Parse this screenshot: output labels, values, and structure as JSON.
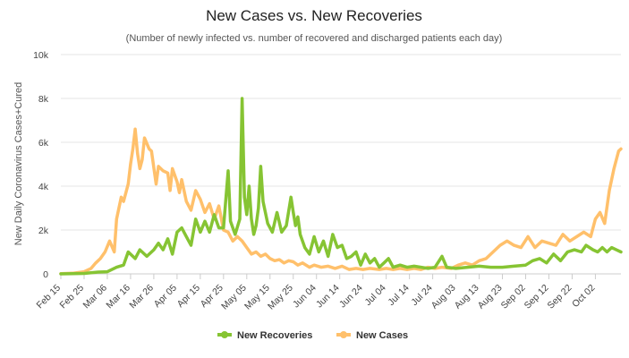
{
  "chart_data": {
    "type": "line",
    "title": "New Cases vs. New Recoveries",
    "subtitle": "(Number of newly infected vs. number of recovered and discharged patients each day)",
    "ylabel": "New Daily Coronavirus Cases+Cured",
    "xlabel": "",
    "ylim": [
      0,
      10000
    ],
    "yticks": [
      0,
      2000,
      4000,
      6000,
      8000,
      10000
    ],
    "ytick_labels": [
      "0",
      "2k",
      "4k",
      "6k",
      "8k",
      "10k"
    ],
    "xticks": [
      "Feb 15",
      "Feb 25",
      "Mar 06",
      "Mar 16",
      "Mar 26",
      "Apr 05",
      "Apr 15",
      "Apr 25",
      "May 05",
      "May 15",
      "May 25",
      "Jun 04",
      "Jun 14",
      "Jun 24",
      "Jul 04",
      "Jul 14",
      "Jul 24",
      "Aug 03",
      "Aug 13",
      "Aug 23",
      "Sep 02",
      "Sep 12",
      "Sep 22",
      "Oct 02"
    ],
    "x_range": [
      "Feb 15",
      "Oct 13"
    ],
    "grid": true,
    "legend_position": "bottom",
    "series": [
      {
        "name": "New Recoveries",
        "color": "#86c433",
        "points": [
          [
            "Feb 15",
            0
          ],
          [
            "Feb 25",
            20
          ],
          [
            "Mar 02",
            80
          ],
          [
            "Mar 06",
            100
          ],
          [
            "Mar 10",
            300
          ],
          [
            "Mar 13",
            400
          ],
          [
            "Mar 15",
            1000
          ],
          [
            "Mar 18",
            700
          ],
          [
            "Mar 20",
            1100
          ],
          [
            "Mar 23",
            800
          ],
          [
            "Mar 26",
            1100
          ],
          [
            "Mar 28",
            1400
          ],
          [
            "Mar 30",
            1100
          ],
          [
            "Apr 01",
            1600
          ],
          [
            "Apr 03",
            900
          ],
          [
            "Apr 05",
            1900
          ],
          [
            "Apr 07",
            2100
          ],
          [
            "Apr 09",
            1700
          ],
          [
            "Apr 11",
            1300
          ],
          [
            "Apr 13",
            2500
          ],
          [
            "Apr 15",
            1900
          ],
          [
            "Apr 17",
            2400
          ],
          [
            "Apr 19",
            1900
          ],
          [
            "Apr 21",
            2700
          ],
          [
            "Apr 23",
            2100
          ],
          [
            "Apr 25",
            2100
          ],
          [
            "Apr 27",
            4700
          ],
          [
            "Apr 28",
            2400
          ],
          [
            "Apr 30",
            1800
          ],
          [
            "May 02",
            2500
          ],
          [
            "May 03",
            8000
          ],
          [
            "May 04",
            3500
          ],
          [
            "May 05",
            2700
          ],
          [
            "May 06",
            4000
          ],
          [
            "May 07",
            2500
          ],
          [
            "May 08",
            1800
          ],
          [
            "May 09",
            2200
          ],
          [
            "May 10",
            3000
          ],
          [
            "May 11",
            4900
          ],
          [
            "May 12",
            3300
          ],
          [
            "May 14",
            2300
          ],
          [
            "May 16",
            1900
          ],
          [
            "May 18",
            2800
          ],
          [
            "May 20",
            1900
          ],
          [
            "May 22",
            2200
          ],
          [
            "May 24",
            3500
          ],
          [
            "May 25",
            2800
          ],
          [
            "May 26",
            2200
          ],
          [
            "May 27",
            2600
          ],
          [
            "May 28",
            1800
          ],
          [
            "May 30",
            1200
          ],
          [
            "Jun 01",
            900
          ],
          [
            "Jun 03",
            1700
          ],
          [
            "Jun 05",
            1000
          ],
          [
            "Jun 07",
            1500
          ],
          [
            "Jun 09",
            800
          ],
          [
            "Jun 11",
            1800
          ],
          [
            "Jun 13",
            1200
          ],
          [
            "Jun 15",
            1300
          ],
          [
            "Jun 17",
            700
          ],
          [
            "Jun 19",
            800
          ],
          [
            "Jun 21",
            1000
          ],
          [
            "Jun 23",
            400
          ],
          [
            "Jun 25",
            900
          ],
          [
            "Jun 27",
            500
          ],
          [
            "Jun 29",
            700
          ],
          [
            "Jul 01",
            300
          ],
          [
            "Jul 03",
            500
          ],
          [
            "Jul 05",
            700
          ],
          [
            "Jul 07",
            300
          ],
          [
            "Jul 10",
            400
          ],
          [
            "Jul 13",
            300
          ],
          [
            "Jul 16",
            350
          ],
          [
            "Jul 19",
            300
          ],
          [
            "Jul 22",
            250
          ],
          [
            "Jul 25",
            300
          ],
          [
            "Jul 28",
            800
          ],
          [
            "Jul 30",
            300
          ],
          [
            "Aug 03",
            250
          ],
          [
            "Aug 08",
            300
          ],
          [
            "Aug 13",
            350
          ],
          [
            "Aug 18",
            300
          ],
          [
            "Aug 23",
            300
          ],
          [
            "Aug 28",
            350
          ],
          [
            "Sep 02",
            400
          ],
          [
            "Sep 05",
            600
          ],
          [
            "Sep 08",
            700
          ],
          [
            "Sep 11",
            500
          ],
          [
            "Sep 14",
            900
          ],
          [
            "Sep 17",
            600
          ],
          [
            "Sep 20",
            1000
          ],
          [
            "Sep 23",
            1100
          ],
          [
            "Sep 26",
            1000
          ],
          [
            "Sep 28",
            1300
          ],
          [
            "Oct 01",
            1100
          ],
          [
            "Oct 03",
            1000
          ],
          [
            "Oct 05",
            1200
          ],
          [
            "Oct 07",
            1000
          ],
          [
            "Oct 09",
            1200
          ],
          [
            "Oct 11",
            1100
          ],
          [
            "Oct 13",
            1000
          ]
        ]
      },
      {
        "name": "New Cases",
        "color": "#ffc06b",
        "points": [
          [
            "Feb 15",
            10
          ],
          [
            "Feb 20",
            30
          ],
          [
            "Feb 25",
            100
          ],
          [
            "Feb 28",
            250
          ],
          [
            "Mar 01",
            500
          ],
          [
            "Mar 03",
            700
          ],
          [
            "Mar 05",
            1000
          ],
          [
            "Mar 07",
            1500
          ],
          [
            "Mar 09",
            1000
          ],
          [
            "Mar 10",
            2500
          ],
          [
            "Mar 12",
            3500
          ],
          [
            "Mar 13",
            3300
          ],
          [
            "Mar 15",
            4100
          ],
          [
            "Mar 16",
            5000
          ],
          [
            "Mar 17",
            5700
          ],
          [
            "Mar 18",
            6600
          ],
          [
            "Mar 19",
            5500
          ],
          [
            "Mar 20",
            4800
          ],
          [
            "Mar 21",
            5200
          ],
          [
            "Mar 22",
            6200
          ],
          [
            "Mar 24",
            5700
          ],
          [
            "Mar 25",
            5600
          ],
          [
            "Mar 27",
            4100
          ],
          [
            "Mar 28",
            4900
          ],
          [
            "Mar 30",
            4700
          ],
          [
            "Apr 01",
            4600
          ],
          [
            "Apr 02",
            3800
          ],
          [
            "Apr 03",
            4800
          ],
          [
            "Apr 05",
            4200
          ],
          [
            "Apr 06",
            3700
          ],
          [
            "Apr 07",
            4300
          ],
          [
            "Apr 09",
            3300
          ],
          [
            "Apr 11",
            2900
          ],
          [
            "Apr 13",
            3800
          ],
          [
            "Apr 15",
            3400
          ],
          [
            "Apr 17",
            2800
          ],
          [
            "Apr 19",
            3200
          ],
          [
            "Apr 21",
            2500
          ],
          [
            "Apr 23",
            3100
          ],
          [
            "Apr 25",
            2000
          ],
          [
            "Apr 27",
            1900
          ],
          [
            "Apr 29",
            1500
          ],
          [
            "May 01",
            1700
          ],
          [
            "May 03",
            1500
          ],
          [
            "May 05",
            1200
          ],
          [
            "May 07",
            900
          ],
          [
            "May 09",
            1000
          ],
          [
            "May 11",
            800
          ],
          [
            "May 13",
            900
          ],
          [
            "May 15",
            700
          ],
          [
            "May 17",
            600
          ],
          [
            "May 19",
            650
          ],
          [
            "May 21",
            500
          ],
          [
            "May 23",
            600
          ],
          [
            "May 25",
            550
          ],
          [
            "May 27",
            400
          ],
          [
            "May 29",
            500
          ],
          [
            "Jun 01",
            300
          ],
          [
            "Jun 03",
            400
          ],
          [
            "Jun 06",
            300
          ],
          [
            "Jun 09",
            350
          ],
          [
            "Jun 12",
            250
          ],
          [
            "Jun 15",
            350
          ],
          [
            "Jun 18",
            200
          ],
          [
            "Jun 21",
            250
          ],
          [
            "Jun 24",
            200
          ],
          [
            "Jun 27",
            250
          ],
          [
            "Jul 01",
            200
          ],
          [
            "Jul 04",
            250
          ],
          [
            "Jul 07",
            200
          ],
          [
            "Jul 10",
            250
          ],
          [
            "Jul 13",
            200
          ],
          [
            "Jul 16",
            250
          ],
          [
            "Jul 19",
            200
          ],
          [
            "Jul 22",
            300
          ],
          [
            "Jul 25",
            250
          ],
          [
            "Jul 28",
            300
          ],
          [
            "Aug 01",
            250
          ],
          [
            "Aug 04",
            400
          ],
          [
            "Aug 07",
            500
          ],
          [
            "Aug 10",
            400
          ],
          [
            "Aug 13",
            600
          ],
          [
            "Aug 16",
            700
          ],
          [
            "Aug 19",
            1000
          ],
          [
            "Aug 22",
            1300
          ],
          [
            "Aug 25",
            1500
          ],
          [
            "Aug 28",
            1300
          ],
          [
            "Aug 31",
            1200
          ],
          [
            "Sep 03",
            1700
          ],
          [
            "Sep 06",
            1200
          ],
          [
            "Sep 09",
            1500
          ],
          [
            "Sep 12",
            1400
          ],
          [
            "Sep 15",
            1300
          ],
          [
            "Sep 18",
            1800
          ],
          [
            "Sep 21",
            1500
          ],
          [
            "Sep 24",
            1700
          ],
          [
            "Sep 27",
            1900
          ],
          [
            "Sep 30",
            1700
          ],
          [
            "Oct 02",
            2500
          ],
          [
            "Oct 04",
            2800
          ],
          [
            "Oct 06",
            2300
          ],
          [
            "Oct 08",
            3800
          ],
          [
            "Oct 10",
            4800
          ],
          [
            "Oct 12",
            5600
          ],
          [
            "Oct 13",
            5700
          ]
        ]
      }
    ]
  }
}
